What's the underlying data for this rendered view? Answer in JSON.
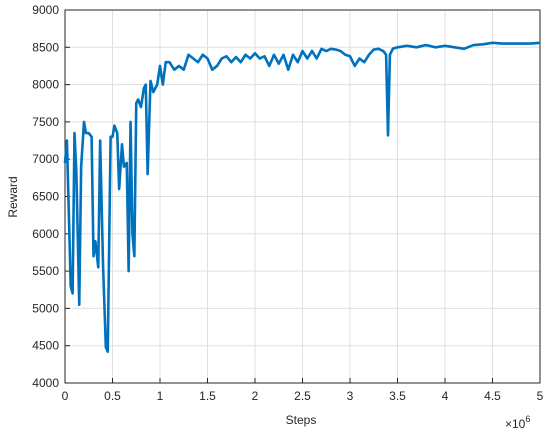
{
  "chart_data": {
    "type": "line",
    "xlabel": "Steps",
    "ylabel": "Reward",
    "x_multiplier": {
      "base": "×10",
      "exponent": "6"
    },
    "x": [
      0,
      0.02,
      0.04,
      0.06,
      0.08,
      0.1,
      0.12,
      0.15,
      0.17,
      0.2,
      0.22,
      0.25,
      0.28,
      0.3,
      0.32,
      0.35,
      0.37,
      0.4,
      0.43,
      0.45,
      0.48,
      0.5,
      0.52,
      0.55,
      0.57,
      0.6,
      0.62,
      0.65,
      0.67,
      0.69,
      0.71,
      0.73,
      0.75,
      0.77,
      0.8,
      0.83,
      0.85,
      0.87,
      0.9,
      0.93,
      0.97,
      1.0,
      1.03,
      1.06,
      1.1,
      1.15,
      1.2,
      1.25,
      1.3,
      1.35,
      1.4,
      1.45,
      1.5,
      1.55,
      1.6,
      1.65,
      1.7,
      1.75,
      1.8,
      1.85,
      1.9,
      1.95,
      2.0,
      2.05,
      2.1,
      2.15,
      2.2,
      2.25,
      2.3,
      2.35,
      2.4,
      2.45,
      2.5,
      2.55,
      2.6,
      2.65,
      2.7,
      2.75,
      2.8,
      2.85,
      2.9,
      2.95,
      3.0,
      3.05,
      3.1,
      3.15,
      3.2,
      3.25,
      3.3,
      3.35,
      3.38,
      3.4,
      3.42,
      3.45,
      3.5,
      3.6,
      3.7,
      3.8,
      3.9,
      4.0,
      4.1,
      4.2,
      4.3,
      4.4,
      4.5,
      4.6,
      4.7,
      4.8,
      4.9,
      5.0
    ],
    "series": [
      {
        "name": "Reward",
        "color": "#0072bd",
        "values": [
          6950,
          7250,
          6300,
          5300,
          5200,
          7350,
          6800,
          5050,
          6900,
          7500,
          7350,
          7350,
          7300,
          5700,
          5900,
          5550,
          7250,
          5600,
          4480,
          4420,
          7300,
          7300,
          7450,
          7350,
          6600,
          7200,
          6900,
          6950,
          5500,
          7500,
          6000,
          5700,
          7750,
          7800,
          7700,
          7950,
          8000,
          6800,
          8050,
          7900,
          8000,
          8250,
          8000,
          8300,
          8300,
          8200,
          8250,
          8200,
          8400,
          8350,
          8300,
          8400,
          8350,
          8200,
          8250,
          8350,
          8380,
          8300,
          8370,
          8300,
          8400,
          8350,
          8420,
          8350,
          8380,
          8250,
          8400,
          8280,
          8400,
          8200,
          8400,
          8300,
          8450,
          8350,
          8450,
          8350,
          8480,
          8450,
          8480,
          8470,
          8450,
          8400,
          8380,
          8250,
          8350,
          8300,
          8400,
          8470,
          8480,
          8450,
          8400,
          7320,
          8400,
          8480,
          8500,
          8520,
          8500,
          8530,
          8500,
          8520,
          8500,
          8480,
          8530,
          8540,
          8560,
          8550,
          8550,
          8550,
          8550,
          8560
        ]
      }
    ],
    "xlim": [
      0,
      5
    ],
    "xticks": [
      0,
      0.5,
      1,
      1.5,
      2,
      2.5,
      3,
      3.5,
      4,
      4.5,
      5
    ],
    "ylim": [
      4000,
      9000
    ],
    "yticks": [
      4000,
      4500,
      5000,
      5500,
      6000,
      6500,
      7000,
      7500,
      8000,
      8500,
      9000
    ],
    "grid": true
  }
}
